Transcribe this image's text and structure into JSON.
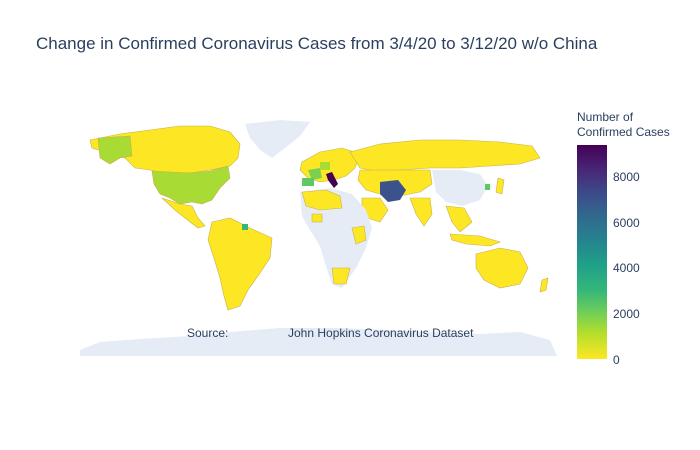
{
  "title": "Change in Confirmed Coronavirus Cases from 3/4/20 to 3/12/20 w/o China",
  "legend": {
    "title_line1": "Number of",
    "title_line2": "Confirmed Cases",
    "ticks": [
      "8000",
      "6000",
      "4000",
      "2000",
      "0"
    ],
    "colorscale": "Viridis (reversed)"
  },
  "annotation": {
    "source_label": "Source:",
    "source_value": "John Hopkins Coronavirus Dataset"
  },
  "chart_data": {
    "type": "choropleth",
    "projection": "equirectangular",
    "scale_range": [
      0,
      9400
    ],
    "highlighted_regions": [
      {
        "region": "Italy",
        "level": "~9000"
      },
      {
        "region": "Iran",
        "level": "~7500"
      },
      {
        "region": "South Korea",
        "level": "~2000"
      },
      {
        "region": "United States",
        "level": "~1500"
      },
      {
        "region": "France",
        "level": "~2500"
      },
      {
        "region": "Germany",
        "level": "~1800"
      },
      {
        "region": "Spain",
        "level": "~2300"
      },
      {
        "region": "Other countries",
        "level": "~0"
      }
    ]
  }
}
